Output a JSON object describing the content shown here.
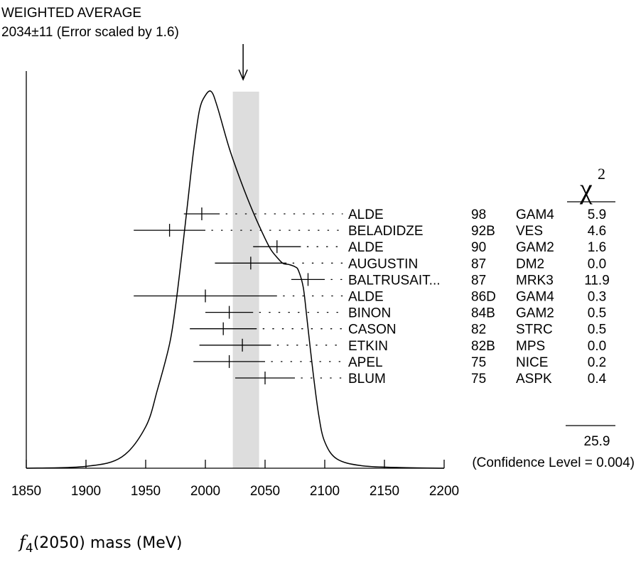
{
  "chart_data": {
    "type": "ideogram",
    "title": "WEIGHTED AVERAGE",
    "subtitle": "2034±11 (Error scaled by 1.6)",
    "weighted_average": {
      "value": 2034,
      "error": 11
    },
    "xlabel": {
      "symbol": "f",
      "subscript": "4",
      "rest": "(2050) mass (MeV)"
    },
    "xlim": [
      1850,
      2200
    ],
    "x_tick_labels": [
      "1850",
      "1900",
      "1950",
      "2000",
      "2050",
      "2100",
      "2150",
      "2200"
    ],
    "x_ticks": [
      1850,
      1900,
      1950,
      2000,
      2050,
      2100,
      2150,
      2200
    ],
    "chi2_header": {
      "symbol": "χ",
      "exponent": "2"
    },
    "measurements": [
      {
        "author": "ALDE",
        "year": "98",
        "experiment": "GAM4",
        "chi2": "5.9",
        "value": 1997,
        "low": 1982,
        "high": 2012
      },
      {
        "author": "BELADIDZE",
        "year": "92B",
        "experiment": "VES",
        "chi2": "4.6",
        "value": 1970,
        "low": 1940,
        "high": 2000
      },
      {
        "author": "ALDE",
        "year": "90",
        "experiment": "GAM2",
        "chi2": "1.6",
        "value": 2060,
        "low": 2040,
        "high": 2080
      },
      {
        "author": "AUGUSTIN",
        "year": "87",
        "experiment": "DM2",
        "chi2": "0.0",
        "value": 2038,
        "low": 2008,
        "high": 2068
      },
      {
        "author": "BALTRUSAIT...",
        "year": "87",
        "experiment": "MRK3",
        "chi2": "11.9",
        "value": 2086,
        "low": 2072,
        "high": 2100
      },
      {
        "author": "ALDE",
        "year": "86D",
        "experiment": "GAM4",
        "chi2": "0.3",
        "value": 2000,
        "low": 1940,
        "high": 2060
      },
      {
        "author": "BINON",
        "year": "84B",
        "experiment": "GAM2",
        "chi2": "0.5",
        "value": 2020,
        "low": 2000,
        "high": 2040
      },
      {
        "author": "CASON",
        "year": "82",
        "experiment": "STRC",
        "chi2": "0.5",
        "value": 2015,
        "low": 1987,
        "high": 2043
      },
      {
        "author": "ETKIN",
        "year": "82B",
        "experiment": "MPS",
        "chi2": "0.0",
        "value": 2031,
        "low": 1995,
        "high": 2055
      },
      {
        "author": "APEL",
        "year": "75",
        "experiment": "NICE",
        "chi2": "0.2",
        "value": 2020,
        "low": 1990,
        "high": 2050
      },
      {
        "author": "BLUM",
        "year": "75",
        "experiment": "ASPK",
        "chi2": "0.4",
        "value": 2050,
        "low": 2025,
        "high": 2075
      }
    ],
    "chi2_total": "25.9",
    "confidence_level_text": "(Confidence Level = 0.004)",
    "ideogram_curve": [
      [
        1850,
        0.0
      ],
      [
        1900,
        0.005
      ],
      [
        1930,
        0.03
      ],
      [
        1950,
        0.11
      ],
      [
        1960,
        0.21
      ],
      [
        1970,
        0.33
      ],
      [
        1975,
        0.43
      ],
      [
        1980,
        0.56
      ],
      [
        1985,
        0.7
      ],
      [
        1990,
        0.84
      ],
      [
        1995,
        0.95
      ],
      [
        2000,
        0.99
      ],
      [
        2005,
        1.0
      ],
      [
        2010,
        0.96
      ],
      [
        2020,
        0.85
      ],
      [
        2030,
        0.76
      ],
      [
        2040,
        0.68
      ],
      [
        2050,
        0.61
      ],
      [
        2055,
        0.58
      ],
      [
        2060,
        0.56
      ],
      [
        2065,
        0.544
      ],
      [
        2070,
        0.541
      ],
      [
        2075,
        0.535
      ],
      [
        2078,
        0.525
      ],
      [
        2082,
        0.48
      ],
      [
        2085,
        0.4
      ],
      [
        2090,
        0.26
      ],
      [
        2095,
        0.14
      ],
      [
        2100,
        0.07
      ],
      [
        2110,
        0.025
      ],
      [
        2130,
        0.007
      ],
      [
        2160,
        0.002
      ],
      [
        2200,
        0.0
      ]
    ]
  }
}
